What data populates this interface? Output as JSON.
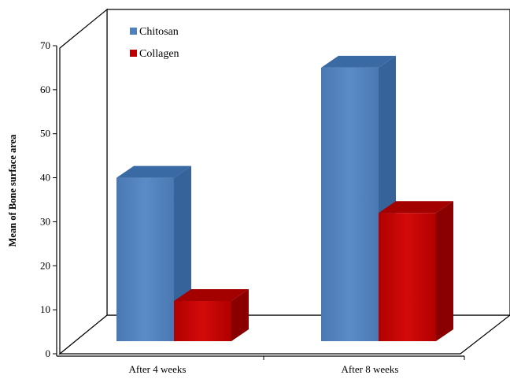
{
  "chart_data": {
    "type": "bar",
    "title": "",
    "xlabel": "",
    "ylabel": "Mean of Bone surface area",
    "ylim": [
      0,
      70
    ],
    "yticks": [
      0,
      10,
      20,
      30,
      40,
      50,
      60,
      70
    ],
    "categories": [
      "After 4 weeks",
      "After 8 weeks"
    ],
    "series": [
      {
        "name": "Chitosan",
        "values": [
          40,
          65
        ],
        "color": "#4F81BD"
      },
      {
        "name": "Collagen",
        "values": [
          12,
          32
        ],
        "color": "#C00000"
      }
    ],
    "legend_position": "top-left",
    "grid": false,
    "style": "3d-column"
  }
}
